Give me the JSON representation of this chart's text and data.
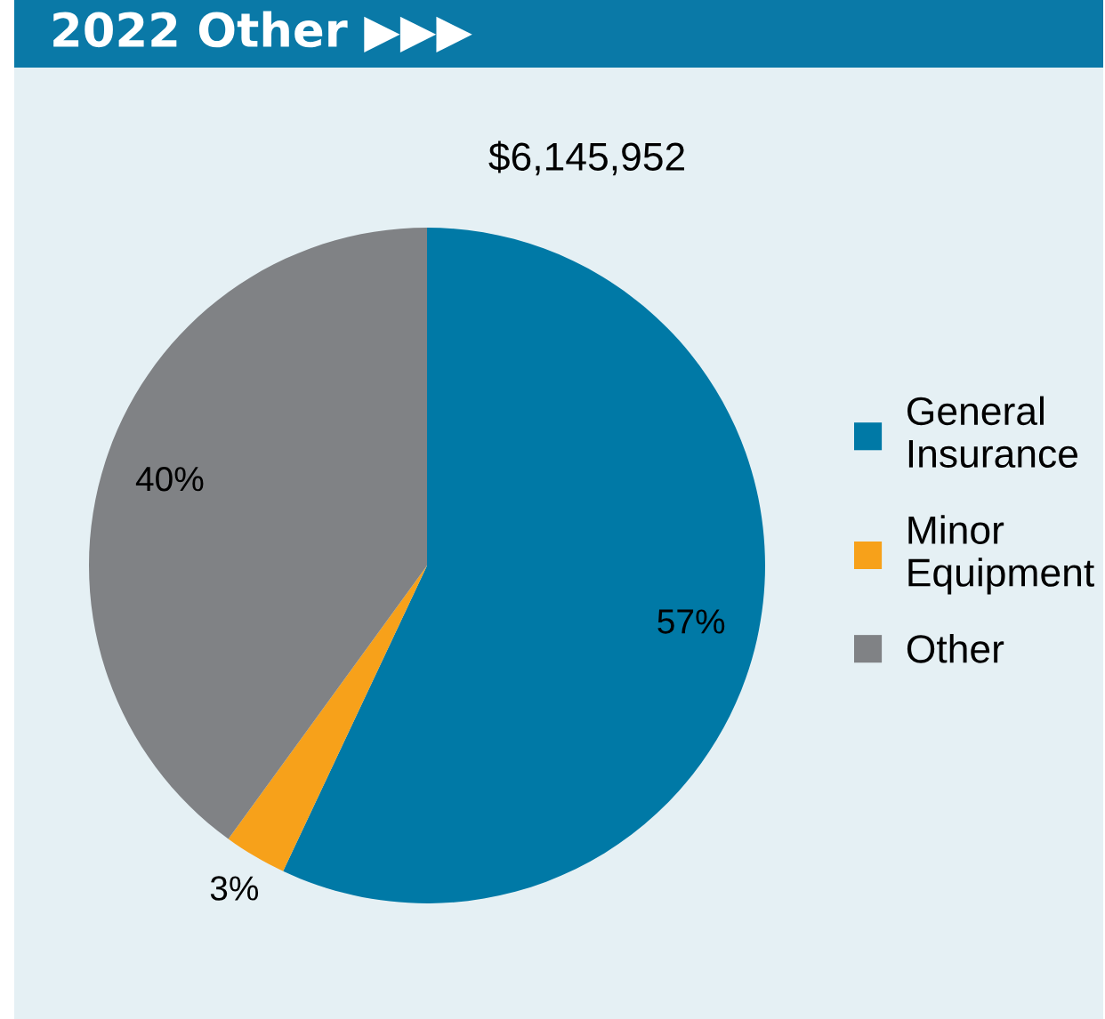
{
  "chart_data": {
    "type": "pie",
    "title": "2022 Other ▶▶▶",
    "subtitle": "$6,145,952",
    "categories": [
      "General Insurance",
      "Minor Equipment",
      "Other"
    ],
    "values": [
      57,
      3,
      40
    ],
    "colors": [
      "#0079a6",
      "#f7a11a",
      "#808285"
    ],
    "value_labels": [
      "57%",
      "3%",
      "40%"
    ],
    "legend": "right"
  }
}
